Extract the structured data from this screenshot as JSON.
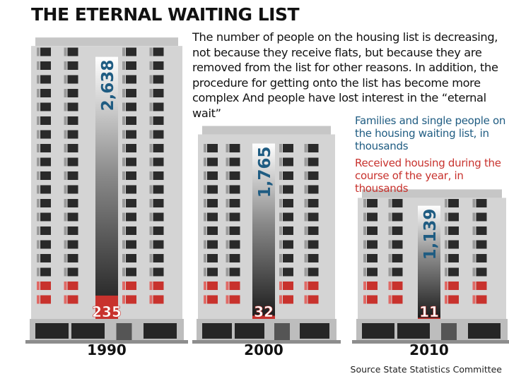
{
  "title": "THE ETERNAL WAITING LIST",
  "description": "The number of people on the housing list is decreasing, not because they receive flats, but because they are removed from the list for other reasons. In addition, the procedure for getting onto the list has become more complex And people have lost interest in the “eternal wait”",
  "source": "Source  State Statistics Committee",
  "colors": {
    "waiting": "#1f5c82",
    "received": "#c8322d",
    "building": "#d4d4d4",
    "windows": "#2a2a2a"
  },
  "chart_data": {
    "type": "bar",
    "categories": [
      "1990",
      "2000",
      "2010"
    ],
    "series": [
      {
        "name": "Families and single people on the housing waiting list, in thousands",
        "values": [
          2638,
          1765,
          1139
        ],
        "labels": [
          "2,638",
          "1,765",
          "1,139"
        ]
      },
      {
        "name": "Received housing during the course of the year, in thousands",
        "values": [
          235,
          32,
          11
        ],
        "labels": [
          "235",
          "32",
          "11"
        ]
      }
    ],
    "legend_position": "right"
  }
}
